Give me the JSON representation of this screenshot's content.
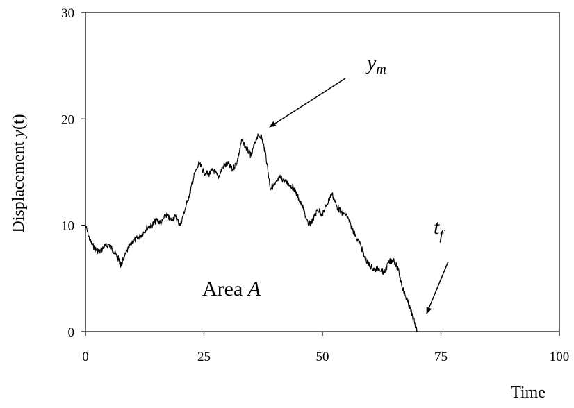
{
  "chart_data": {
    "type": "line",
    "title": "",
    "xlabel": "Time",
    "ylabel": {
      "main": "Displacement ",
      "var": "y",
      "rest": "(t)"
    },
    "xlim": [
      0,
      100
    ],
    "ylim": [
      0,
      30
    ],
    "xticks": [
      "0",
      "25",
      "50",
      "75",
      "100"
    ],
    "yticks": [
      "0",
      "10",
      "20",
      "30"
    ],
    "grid": false,
    "legend": "none",
    "line_color": "#000000",
    "series": [
      {
        "x": [
          0,
          1,
          2,
          3,
          4,
          5,
          6,
          7,
          7.5,
          8,
          9,
          10,
          11,
          12,
          13,
          14,
          15,
          16,
          17,
          18,
          19,
          20,
          21,
          22,
          23,
          24,
          25,
          26,
          27,
          28,
          29,
          30,
          31,
          32,
          33,
          34,
          35,
          36,
          37,
          38,
          39,
          40,
          41,
          42,
          43,
          44,
          45,
          46,
          47,
          48,
          49,
          50,
          51,
          52,
          53,
          54,
          55,
          56,
          57,
          58,
          59,
          60,
          61,
          62,
          63,
          64,
          65,
          66,
          67,
          68,
          69,
          70
        ],
        "y": [
          10.0,
          8.5,
          7.8,
          7.5,
          8.0,
          8.2,
          7.5,
          6.8,
          6.2,
          6.8,
          7.8,
          8.5,
          8.8,
          9.2,
          9.8,
          10.0,
          10.5,
          10.2,
          11.0,
          10.5,
          10.8,
          10.0,
          11.5,
          13.0,
          14.8,
          15.8,
          15.0,
          14.8,
          15.2,
          14.5,
          15.5,
          15.8,
          15.2,
          16.0,
          18.0,
          17.2,
          16.5,
          18.2,
          18.5,
          16.8,
          13.5,
          13.8,
          14.5,
          14.2,
          13.8,
          13.5,
          12.5,
          11.5,
          10.0,
          10.5,
          11.5,
          11.0,
          12.0,
          13.0,
          11.8,
          11.2,
          11.0,
          10.0,
          9.0,
          8.2,
          6.8,
          6.2,
          5.8,
          6.0,
          5.5,
          6.5,
          6.8,
          5.8,
          4.0,
          2.8,
          1.5,
          0.0
        ]
      }
    ],
    "annotations": {
      "peak": {
        "main": "y",
        "sub": "m"
      },
      "end": {
        "main": "t",
        "sub": "f"
      },
      "area": {
        "text": "Area ",
        "var": "A"
      }
    }
  }
}
